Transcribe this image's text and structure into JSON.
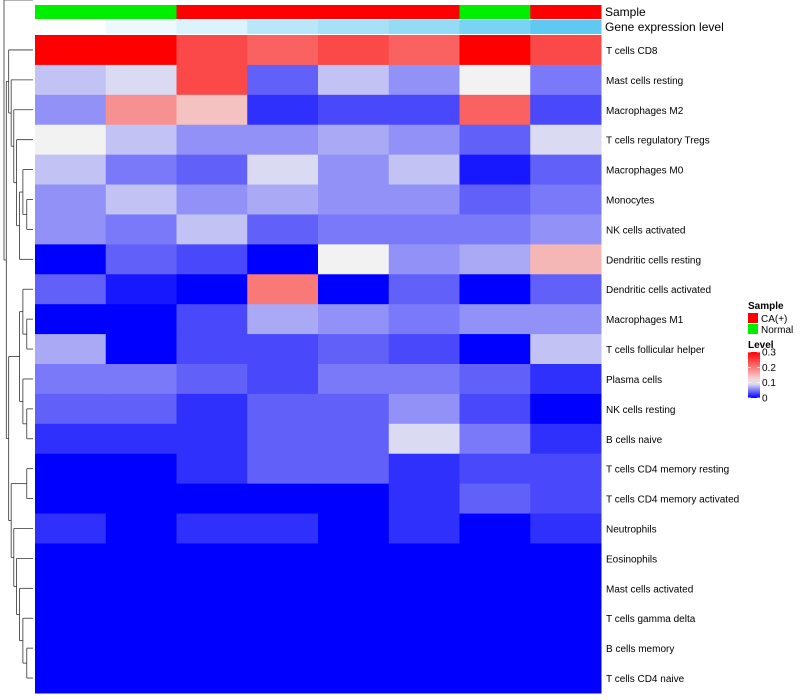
{
  "chart_data": {
    "type": "heatmap",
    "title": "",
    "annotation_labels": {
      "sample": "Sample",
      "gene_expression": "Gene expression level"
    },
    "rows": [
      "T cells CD8",
      "Mast cells resting",
      "Macrophages M2",
      "T cells regulatory  Tregs",
      "Macrophages M0",
      "Monocytes",
      "NK cells activated",
      "Dendritic cells resting",
      "Dendritic cells activated",
      "Macrophages M1",
      "T cells follicular helper",
      "Plasma cells",
      "NK cells resting",
      "B cells naive",
      "T cells CD4 memory resting",
      "T cells CD4 memory activated",
      "Neutrophils",
      "Eosinophils",
      "Mast cells activated",
      "T cells gamma delta",
      "B cells memory",
      "T cells CD4 naive"
    ],
    "columns": [
      {
        "sample": "Normal",
        "gene_expression": 0.0
      },
      {
        "sample": "Normal",
        "gene_expression": 0.1
      },
      {
        "sample": "CA(+)",
        "gene_expression": 0.2
      },
      {
        "sample": "CA(+)",
        "gene_expression": 0.4
      },
      {
        "sample": "CA(+)",
        "gene_expression": 0.5
      },
      {
        "sample": "CA(+)",
        "gene_expression": 0.6
      },
      {
        "sample": "Normal",
        "gene_expression": 0.75
      },
      {
        "sample": "CA(+)",
        "gene_expression": 0.9
      }
    ],
    "values": [
      [
        0.3,
        0.3,
        0.24,
        0.22,
        0.24,
        0.22,
        0.3,
        0.24
      ],
      [
        0.08,
        0.09,
        0.24,
        0.04,
        0.08,
        0.06,
        0.1,
        0.05
      ],
      [
        0.06,
        0.18,
        0.14,
        0.02,
        0.03,
        0.03,
        0.22,
        0.03
      ],
      [
        0.1,
        0.08,
        0.06,
        0.06,
        0.07,
        0.06,
        0.04,
        0.09
      ],
      [
        0.08,
        0.05,
        0.04,
        0.09,
        0.06,
        0.08,
        0.01,
        0.04
      ],
      [
        0.06,
        0.08,
        0.06,
        0.07,
        0.06,
        0.06,
        0.04,
        0.05
      ],
      [
        0.06,
        0.05,
        0.08,
        0.04,
        0.05,
        0.05,
        0.05,
        0.06
      ],
      [
        0.0,
        0.04,
        0.03,
        0.0,
        0.1,
        0.06,
        0.07,
        0.15
      ],
      [
        0.04,
        0.01,
        0.0,
        0.2,
        0.0,
        0.04,
        0.0,
        0.04
      ],
      [
        0.0,
        0.0,
        0.03,
        0.07,
        0.06,
        0.05,
        0.06,
        0.06
      ],
      [
        0.07,
        0.0,
        0.03,
        0.03,
        0.04,
        0.03,
        0.0,
        0.08
      ],
      [
        0.05,
        0.05,
        0.04,
        0.03,
        0.05,
        0.05,
        0.04,
        0.02
      ],
      [
        0.04,
        0.04,
        0.02,
        0.04,
        0.04,
        0.06,
        0.03,
        0.0
      ],
      [
        0.02,
        0.02,
        0.02,
        0.04,
        0.04,
        0.09,
        0.05,
        0.02
      ],
      [
        0.0,
        0.0,
        0.02,
        0.04,
        0.04,
        0.02,
        0.03,
        0.03
      ],
      [
        0.0,
        0.0,
        0.0,
        0.0,
        0.0,
        0.02,
        0.04,
        0.03
      ],
      [
        0.02,
        0.0,
        0.02,
        0.02,
        0.0,
        0.02,
        0.0,
        0.02
      ],
      [
        0.0,
        0.0,
        0.0,
        0.0,
        0.0,
        0.0,
        0.0,
        0.0
      ],
      [
        0.0,
        0.0,
        0.0,
        0.0,
        0.0,
        0.0,
        0.0,
        0.0
      ],
      [
        0.0,
        0.0,
        0.0,
        0.0,
        0.0,
        0.0,
        0.0,
        0.0
      ],
      [
        0.0,
        0.0,
        0.0,
        0.0,
        0.0,
        0.0,
        0.0,
        0.0
      ],
      [
        0.0,
        0.0,
        0.0,
        0.0,
        0.0,
        0.0,
        0.0,
        0.0
      ]
    ],
    "color_scale": {
      "min": 0,
      "mid": 0.1,
      "max": 0.3,
      "low_color": "#0000ff",
      "mid_color": "#f2f2f2",
      "high_color": "#ff0000"
    },
    "sample_colors": {
      "CA(+)": "#ff0000",
      "Normal": "#00ee00"
    },
    "gene_expression_colors": {
      "low": "#ffffff",
      "high": "#4dc3f0"
    },
    "legend": {
      "sample_title": "Sample",
      "sample_entries": [
        "CA(+)",
        "Normal"
      ],
      "level_title": "Level",
      "level_ticks": [
        {
          "label": "0.3",
          "value": 0.3
        },
        {
          "label": "0.2",
          "value": 0.2
        },
        {
          "label": "0.1",
          "value": 0.1
        },
        {
          "label": "0",
          "value": 0
        }
      ],
      "position": "right"
    },
    "dendrogram": {
      "side": "left",
      "tree": [
        [
          [
            0,
            [
              1,
              [
                2,
                [
                  3,
                  [
                    [
                      4,
                      [
                        5,
                        6
                      ]
                    ],
                    7
                  ]
                ]
              ]
            ]
          ],
          [
            [
              [
                8,
                [
                  9,
                  10
                ]
              ],
              [
                11,
                [
                  12,
                  13
                ]
              ]
            ],
            [
              [
                14,
                15
              ],
              [
                16,
                [
                  17,
                  [
                    18,
                    [
                      19,
                      [
                        20,
                        21
                      ]
                    ]
                  ]
                ]
              ]
            ]
          ]
        ]
      ],
      "heights": {
        "root": 1.0
      }
    }
  }
}
